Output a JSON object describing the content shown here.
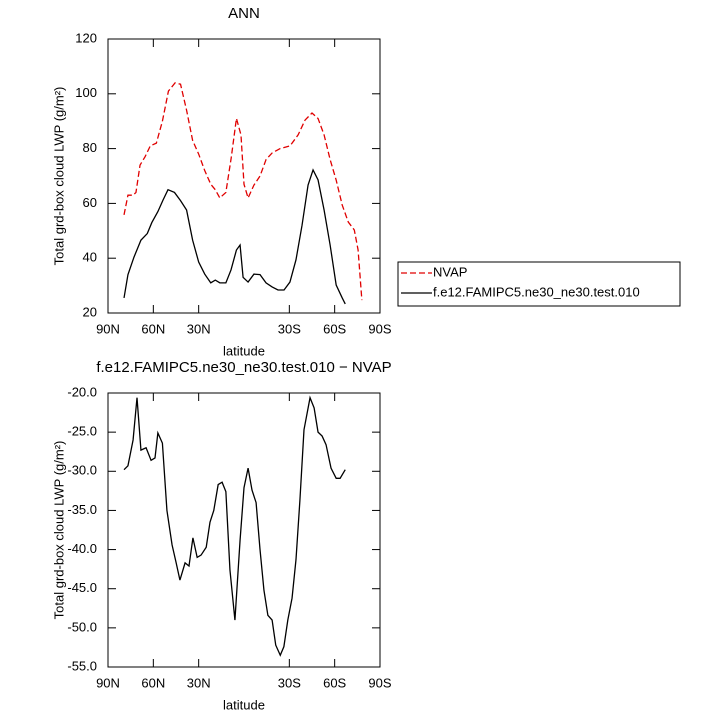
{
  "chart_data": [
    {
      "type": "line",
      "title": "ANN",
      "xlabel": "latitude",
      "ylabel": "Total grd-box cloud LWP (g/m²)",
      "xlim": [
        90,
        -90
      ],
      "xticks": [
        {
          "value": 90,
          "label": "90N"
        },
        {
          "value": 60,
          "label": "60N"
        },
        {
          "value": 30,
          "label": "30N"
        },
        {
          "value": -30,
          "label": "30S"
        },
        {
          "value": -60,
          "label": "60S"
        },
        {
          "value": -90,
          "label": "90S"
        }
      ],
      "ylim": [
        20,
        120
      ],
      "yticks": [
        20,
        40,
        60,
        80,
        100,
        120
      ],
      "legend": "right",
      "series": [
        {
          "name": "NVAP",
          "color": "#e00000",
          "dashed": true,
          "x": [
            79.4,
            76.8,
            73.4,
            71.5,
            68.8,
            65.5,
            62,
            58,
            54,
            50,
            45.6,
            42,
            38,
            34,
            30,
            26,
            22,
            19,
            16,
            12,
            8.5,
            5,
            2,
            0,
            -2.7,
            -6.6,
            -10.6,
            -14.6,
            -18.6,
            -23.9,
            -30.5,
            -35.8,
            -40.4,
            -45,
            -49,
            -53,
            -57,
            -61,
            -65,
            -69,
            -73,
            -75.5,
            -78
          ],
          "values": [
            55.8,
            63,
            63,
            64,
            74,
            77,
            81,
            82,
            90,
            101,
            104,
            103.5,
            94,
            83,
            78,
            72,
            67,
            65,
            62,
            64,
            76.5,
            91,
            85,
            67,
            62,
            66.7,
            70,
            76,
            78.4,
            80,
            81,
            85,
            90.4,
            93,
            91,
            85,
            76,
            68.5,
            59.4,
            53.2,
            50.3,
            43,
            24.7
          ]
        },
        {
          "name": "f.e12.FAMIPC5.ne30_ne30.test.010",
          "color": "#000000",
          "dashed": false,
          "x": [
            79.4,
            76.8,
            72.8,
            68.2,
            64,
            61,
            57,
            53.6,
            50.3,
            46,
            42,
            38,
            34,
            30,
            26,
            22,
            19,
            16,
            12,
            8.6,
            5,
            2.6,
            0.6,
            -2.7,
            -6.6,
            -10.6,
            -14.6,
            -18.6,
            -22.5,
            -26.5,
            -30.4,
            -34.4,
            -38.4,
            -42.4,
            -45.7,
            -49,
            -53,
            -57,
            -61,
            -65,
            -67
          ],
          "values": [
            25.5,
            34,
            40.4,
            46.6,
            49,
            53,
            57,
            61.2,
            65,
            64,
            61,
            57.6,
            46.6,
            38.6,
            34.2,
            31,
            32,
            31,
            31,
            35.7,
            43,
            44.8,
            33,
            31.3,
            34.2,
            34,
            31,
            29.5,
            28.4,
            28.4,
            31.3,
            39.4,
            52,
            66.7,
            72.2,
            68.6,
            57.6,
            44.8,
            30.2,
            25.5,
            23.3
          ]
        }
      ]
    },
    {
      "type": "line",
      "title": "f.e12.FAMIPC5.ne30_ne30.test.010 − NVAP",
      "xlabel": "latitude",
      "ylabel": "Total grd-box cloud LWP (g/m²)",
      "xlim": [
        90,
        -90
      ],
      "xticks": [
        {
          "value": 90,
          "label": "90N"
        },
        {
          "value": 60,
          "label": "60N"
        },
        {
          "value": 30,
          "label": "30N"
        },
        {
          "value": -30,
          "label": "30S"
        },
        {
          "value": -60,
          "label": "60S"
        },
        {
          "value": -90,
          "label": "90S"
        }
      ],
      "ylim": [
        -55,
        -20
      ],
      "yticks": [
        {
          "value": -55,
          "label": "-55.0"
        },
        {
          "value": -50,
          "label": "-50.0"
        },
        {
          "value": -45,
          "label": "-45.0"
        },
        {
          "value": -40,
          "label": "-40.0"
        },
        {
          "value": -35,
          "label": "-35.0"
        },
        {
          "value": -30,
          "label": "-30.0"
        },
        {
          "value": -25,
          "label": "-25.0"
        },
        {
          "value": -20,
          "label": "-20.0"
        }
      ],
      "series": [
        {
          "color": "#000000",
          "dashed": false,
          "x": [
            79.4,
            76.8,
            73.4,
            70.8,
            68.2,
            64.8,
            61.5,
            58.9,
            57,
            54,
            51,
            47.6,
            45,
            42.4,
            39,
            36.4,
            33.8,
            31,
            28.4,
            25,
            22.5,
            20,
            17.1,
            14.5,
            12,
            9.3,
            6,
            2.6,
            0,
            -2.7,
            -5.3,
            -8,
            -10.6,
            -13.2,
            -15.8,
            -18.6,
            -21,
            -24,
            -26.4,
            -29,
            -31.8,
            -34.4,
            -37,
            -39.7,
            -43.7,
            -46.4,
            -49,
            -51.7,
            -54.3,
            -57.6,
            -61,
            -63.6,
            -67
          ],
          "values": [
            -29.8,
            -29.3,
            -26,
            -20.6,
            -27.3,
            -27,
            -28.6,
            -28.3,
            -25.1,
            -26.4,
            -35,
            -39.4,
            -41.6,
            -43.9,
            -41.7,
            -42.1,
            -38.5,
            -41,
            -40.7,
            -39.7,
            -36.5,
            -35,
            -31.7,
            -31.4,
            -32.6,
            -42.6,
            -49,
            -38.8,
            -32.1,
            -29.6,
            -32.4,
            -34,
            -40,
            -45.2,
            -48.4,
            -49,
            -52.2,
            -53.5,
            -52.4,
            -49,
            -46.2,
            -41.3,
            -33.7,
            -24.7,
            -20.6,
            -21.9,
            -25,
            -25.5,
            -26.6,
            -29.6,
            -30.9,
            -30.9,
            -29.8
          ]
        }
      ]
    }
  ]
}
